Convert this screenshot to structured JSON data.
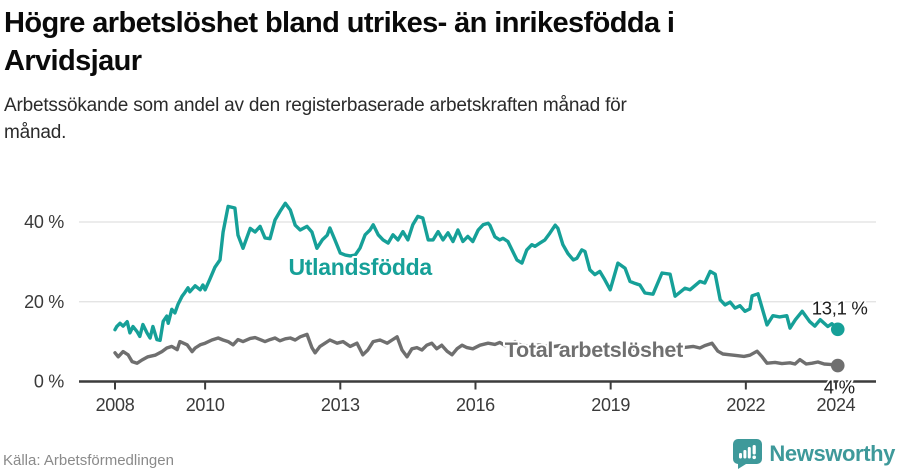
{
  "header": {
    "title": "Högre arbetslöshet bland utrikes- än inrikesfödda i Arvidsjaur",
    "title_lines": [
      "Högre arbetslöshet bland utrikes- än inrikesfödda i",
      "Arvidsjaur"
    ],
    "subtitle": "Arbetssökande som andel av den registerbaserade arbetskraften månad för månad.",
    "subtitle_lines": [
      "Arbetssökande som andel av den registerbaserade arbetskraften månad för",
      "månad."
    ]
  },
  "footer": {
    "source": "Källa: Arbetsförmedlingen",
    "brand": "Newsworthy",
    "logo_icon": "newsworthy-speech-bubble-bar-chart-icon"
  },
  "colors": {
    "teal_series": "#16a098",
    "gray_series": "#6f6f6f",
    "axis": "#3c3c3c",
    "gridline": "#e0e0e0",
    "tick_text": "#3a3a3a",
    "end_label_text": "#1c1c1c",
    "title_text": "#0a0a0a",
    "subtitle_text": "#2b2b2b",
    "source_text": "#8a8a8a",
    "logo": "#3e999a",
    "background": "#ffffff"
  },
  "chart_data": {
    "type": "line",
    "title": "Högre arbetslöshet bland utrikes- än inrikesfödda i Arvidsjaur",
    "subtitle": "Arbetssökande som andel av den registerbaserade arbetskraften månad för månad.",
    "xlabel": "",
    "ylabel": "",
    "unit": "%",
    "xlim": [
      2008,
      2024.2
    ],
    "ylim": [
      0,
      45
    ],
    "grid": "horizontal",
    "legend": "inline-series-labels",
    "x_ticks": [
      {
        "year": 2008,
        "label": "2008"
      },
      {
        "year": 2010,
        "label": "2010"
      },
      {
        "year": 2013,
        "label": "2013"
      },
      {
        "year": 2016,
        "label": "2016"
      },
      {
        "year": 2019,
        "label": "2019"
      },
      {
        "year": 2022,
        "label": "2022"
      },
      {
        "year": 2024,
        "label": "2024"
      }
    ],
    "y_ticks": [
      {
        "value": 0,
        "label": "0 %",
        "gridline": false
      },
      {
        "value": 20,
        "label": "20 %",
        "gridline": true
      },
      {
        "value": 40,
        "label": "40 %",
        "gridline": true
      }
    ],
    "series": [
      {
        "id": "utlandsfodda",
        "name": "Utlandsfödda",
        "color": "#16a098",
        "end_value": 13.1,
        "end_label": "13,1 %",
        "end_label_offset": [
          -26,
          -15
        ],
        "label_at": [
          2011.85,
          26.7
        ],
        "label_font_px": 23,
        "points": [
          [
            2008.0,
            13.0
          ],
          [
            2008.04,
            13.8
          ],
          [
            2008.11,
            14.6
          ],
          [
            2008.18,
            13.9
          ],
          [
            2008.27,
            15.0
          ],
          [
            2008.33,
            12.2
          ],
          [
            2008.4,
            13.8
          ],
          [
            2008.49,
            12.5
          ],
          [
            2008.55,
            11.3
          ],
          [
            2008.62,
            14.3
          ],
          [
            2008.71,
            12.2
          ],
          [
            2008.78,
            10.9
          ],
          [
            2008.84,
            13.8
          ],
          [
            2008.93,
            10.5
          ],
          [
            2009.0,
            10.3
          ],
          [
            2009.07,
            15.1
          ],
          [
            2009.15,
            16.4
          ],
          [
            2009.18,
            14.6
          ],
          [
            2009.26,
            18.1
          ],
          [
            2009.33,
            17.2
          ],
          [
            2009.4,
            19.4
          ],
          [
            2009.49,
            21.4
          ],
          [
            2009.55,
            22.3
          ],
          [
            2009.62,
            23.5
          ],
          [
            2009.66,
            22.5
          ],
          [
            2009.78,
            24.0
          ],
          [
            2009.89,
            23.0
          ],
          [
            2009.95,
            24.2
          ],
          [
            2010.0,
            23.0
          ],
          [
            2010.1,
            25.5
          ],
          [
            2010.22,
            28.7
          ],
          [
            2010.33,
            30.5
          ],
          [
            2010.4,
            37.5
          ],
          [
            2010.51,
            43.9
          ],
          [
            2010.66,
            43.5
          ],
          [
            2010.73,
            36.7
          ],
          [
            2010.84,
            33.4
          ],
          [
            2011.0,
            38.4
          ],
          [
            2011.11,
            37.5
          ],
          [
            2011.22,
            38.9
          ],
          [
            2011.33,
            36.0
          ],
          [
            2011.44,
            35.8
          ],
          [
            2011.55,
            40.5
          ],
          [
            2011.66,
            42.6
          ],
          [
            2011.78,
            44.7
          ],
          [
            2011.89,
            43.0
          ],
          [
            2012.0,
            39.2
          ],
          [
            2012.11,
            38.0
          ],
          [
            2012.26,
            38.9
          ],
          [
            2012.37,
            37.5
          ],
          [
            2012.48,
            33.4
          ],
          [
            2012.6,
            35.5
          ],
          [
            2012.71,
            36.7
          ],
          [
            2012.77,
            38.5
          ],
          [
            2012.88,
            35.5
          ],
          [
            2013.0,
            32.2
          ],
          [
            2013.11,
            31.7
          ],
          [
            2013.22,
            31.5
          ],
          [
            2013.33,
            31.7
          ],
          [
            2013.44,
            33.5
          ],
          [
            2013.55,
            36.8
          ],
          [
            2013.66,
            38.0
          ],
          [
            2013.73,
            39.3
          ],
          [
            2013.84,
            36.8
          ],
          [
            2013.95,
            35.5
          ],
          [
            2014.06,
            34.7
          ],
          [
            2014.17,
            36.8
          ],
          [
            2014.28,
            35.5
          ],
          [
            2014.39,
            37.6
          ],
          [
            2014.5,
            35.5
          ],
          [
            2014.61,
            39.3
          ],
          [
            2014.72,
            41.4
          ],
          [
            2014.83,
            41.0
          ],
          [
            2014.95,
            35.5
          ],
          [
            2015.06,
            35.5
          ],
          [
            2015.17,
            37.6
          ],
          [
            2015.28,
            35.5
          ],
          [
            2015.39,
            37.3
          ],
          [
            2015.5,
            35.1
          ],
          [
            2015.61,
            38.0
          ],
          [
            2015.72,
            35.1
          ],
          [
            2015.83,
            36.4
          ],
          [
            2015.94,
            35.1
          ],
          [
            2016.06,
            38.0
          ],
          [
            2016.17,
            39.3
          ],
          [
            2016.28,
            39.7
          ],
          [
            2016.32,
            39.2
          ],
          [
            2016.43,
            36.3
          ],
          [
            2016.54,
            35.5
          ],
          [
            2016.61,
            35.9
          ],
          [
            2016.72,
            35.1
          ],
          [
            2016.81,
            33.0
          ],
          [
            2016.92,
            30.5
          ],
          [
            2017.03,
            29.7
          ],
          [
            2017.14,
            33.0
          ],
          [
            2017.25,
            34.3
          ],
          [
            2017.32,
            33.9
          ],
          [
            2017.43,
            34.7
          ],
          [
            2017.54,
            35.5
          ],
          [
            2017.65,
            37.2
          ],
          [
            2017.77,
            39.2
          ],
          [
            2017.83,
            38.4
          ],
          [
            2017.94,
            34.3
          ],
          [
            2018.05,
            32.1
          ],
          [
            2018.17,
            30.5
          ],
          [
            2018.25,
            30.9
          ],
          [
            2018.36,
            33.0
          ],
          [
            2018.43,
            32.6
          ],
          [
            2018.54,
            28.0
          ],
          [
            2018.65,
            26.8
          ],
          [
            2018.76,
            27.6
          ],
          [
            2018.87,
            25.5
          ],
          [
            2018.99,
            23.0
          ],
          [
            2019.16,
            29.7
          ],
          [
            2019.32,
            28.4
          ],
          [
            2019.43,
            25.1
          ],
          [
            2019.54,
            24.6
          ],
          [
            2019.65,
            24.2
          ],
          [
            2019.76,
            22.2
          ],
          [
            2019.94,
            21.9
          ],
          [
            2020.14,
            27.2
          ],
          [
            2020.32,
            26.9
          ],
          [
            2020.43,
            21.4
          ],
          [
            2020.65,
            23.4
          ],
          [
            2020.76,
            23.0
          ],
          [
            2020.98,
            25.1
          ],
          [
            2021.09,
            24.7
          ],
          [
            2021.21,
            27.6
          ],
          [
            2021.32,
            26.9
          ],
          [
            2021.43,
            20.5
          ],
          [
            2021.54,
            19.2
          ],
          [
            2021.65,
            19.9
          ],
          [
            2021.76,
            18.4
          ],
          [
            2021.87,
            19.0
          ],
          [
            2021.98,
            17.6
          ],
          [
            2022.09,
            18.2
          ],
          [
            2022.14,
            21.5
          ],
          [
            2022.27,
            22.0
          ],
          [
            2022.47,
            14.2
          ],
          [
            2022.6,
            16.5
          ],
          [
            2022.75,
            16.2
          ],
          [
            2022.91,
            16.5
          ],
          [
            2022.98,
            13.4
          ],
          [
            2023.1,
            15.5
          ],
          [
            2023.25,
            17.6
          ],
          [
            2023.42,
            15.0
          ],
          [
            2023.53,
            13.9
          ],
          [
            2023.65,
            15.5
          ],
          [
            2023.82,
            13.8
          ],
          [
            2023.91,
            14.5
          ],
          [
            2024.04,
            13.1
          ]
        ]
      },
      {
        "id": "total",
        "name": "Total arbetslöshet",
        "color": "#6f6f6f",
        "end_value": 4.0,
        "end_label": "4 %",
        "end_label_offset": [
          -14,
          28
        ],
        "label_at": [
          2016.65,
          6.1
        ],
        "label_font_px": 21.5,
        "points": [
          [
            2008.0,
            7.2
          ],
          [
            2008.07,
            6.2
          ],
          [
            2008.18,
            7.5
          ],
          [
            2008.29,
            6.7
          ],
          [
            2008.38,
            5.0
          ],
          [
            2008.49,
            4.6
          ],
          [
            2008.6,
            5.4
          ],
          [
            2008.73,
            6.2
          ],
          [
            2008.89,
            6.6
          ],
          [
            2009.04,
            7.5
          ],
          [
            2009.15,
            8.4
          ],
          [
            2009.26,
            8.8
          ],
          [
            2009.38,
            8.0
          ],
          [
            2009.44,
            10.0
          ],
          [
            2009.6,
            9.2
          ],
          [
            2009.71,
            7.5
          ],
          [
            2009.78,
            8.4
          ],
          [
            2009.89,
            9.2
          ],
          [
            2010.0,
            9.6
          ],
          [
            2010.15,
            10.4
          ],
          [
            2010.29,
            10.9
          ],
          [
            2010.4,
            10.4
          ],
          [
            2010.51,
            10.0
          ],
          [
            2010.62,
            9.2
          ],
          [
            2010.73,
            10.5
          ],
          [
            2010.84,
            10.0
          ],
          [
            2011.0,
            10.8
          ],
          [
            2011.11,
            11.0
          ],
          [
            2011.22,
            10.5
          ],
          [
            2011.33,
            10.0
          ],
          [
            2011.44,
            10.5
          ],
          [
            2011.55,
            10.9
          ],
          [
            2011.66,
            10.2
          ],
          [
            2011.78,
            10.7
          ],
          [
            2011.89,
            10.9
          ],
          [
            2012.0,
            10.4
          ],
          [
            2012.11,
            11.2
          ],
          [
            2012.26,
            11.8
          ],
          [
            2012.37,
            8.5
          ],
          [
            2012.44,
            7.2
          ],
          [
            2012.55,
            8.8
          ],
          [
            2012.66,
            9.6
          ],
          [
            2012.77,
            10.4
          ],
          [
            2012.93,
            9.6
          ],
          [
            2013.06,
            10.0
          ],
          [
            2013.22,
            8.8
          ],
          [
            2013.37,
            9.6
          ],
          [
            2013.5,
            6.7
          ],
          [
            2013.61,
            7.9
          ],
          [
            2013.73,
            10.0
          ],
          [
            2013.88,
            10.4
          ],
          [
            2014.04,
            9.6
          ],
          [
            2014.15,
            10.4
          ],
          [
            2014.26,
            11.2
          ],
          [
            2014.37,
            7.9
          ],
          [
            2014.48,
            6.2
          ],
          [
            2014.59,
            8.2
          ],
          [
            2014.7,
            8.5
          ],
          [
            2014.81,
            7.9
          ],
          [
            2014.92,
            9.1
          ],
          [
            2015.03,
            9.6
          ],
          [
            2015.14,
            8.2
          ],
          [
            2015.25,
            9.1
          ],
          [
            2015.37,
            7.6
          ],
          [
            2015.48,
            6.7
          ],
          [
            2015.59,
            8.2
          ],
          [
            2015.7,
            9.1
          ],
          [
            2015.81,
            8.5
          ],
          [
            2015.94,
            8.2
          ],
          [
            2016.1,
            9.1
          ],
          [
            2016.28,
            9.6
          ],
          [
            2016.43,
            9.3
          ],
          [
            2016.54,
            9.8
          ],
          [
            2016.66,
            9.0
          ],
          [
            2016.77,
            9.5
          ],
          [
            2016.88,
            10.0
          ],
          [
            2016.99,
            9.2
          ],
          [
            2017.2,
            8.8
          ],
          [
            2017.43,
            9.2
          ],
          [
            2017.65,
            8.6
          ],
          [
            2017.88,
            9.0
          ],
          [
            2018.1,
            8.5
          ],
          [
            2018.32,
            8.8
          ],
          [
            2018.54,
            8.3
          ],
          [
            2018.76,
            8.6
          ],
          [
            2018.99,
            8.2
          ],
          [
            2019.21,
            8.5
          ],
          [
            2019.43,
            8.0
          ],
          [
            2019.65,
            8.3
          ],
          [
            2019.87,
            7.9
          ],
          [
            2020.1,
            8.2
          ],
          [
            2020.32,
            8.6
          ],
          [
            2020.54,
            8.4
          ],
          [
            2020.83,
            8.8
          ],
          [
            2020.98,
            8.4
          ],
          [
            2021.09,
            9.0
          ],
          [
            2021.25,
            9.6
          ],
          [
            2021.38,
            7.6
          ],
          [
            2021.49,
            6.9
          ],
          [
            2021.65,
            6.7
          ],
          [
            2021.8,
            6.5
          ],
          [
            2021.96,
            6.3
          ],
          [
            2022.09,
            6.6
          ],
          [
            2022.25,
            7.6
          ],
          [
            2022.36,
            6.2
          ],
          [
            2022.47,
            4.6
          ],
          [
            2022.65,
            4.8
          ],
          [
            2022.8,
            4.5
          ],
          [
            2022.98,
            4.7
          ],
          [
            2023.09,
            4.4
          ],
          [
            2023.2,
            5.5
          ],
          [
            2023.34,
            4.4
          ],
          [
            2023.47,
            4.6
          ],
          [
            2023.6,
            4.9
          ],
          [
            2023.74,
            4.4
          ],
          [
            2023.87,
            4.3
          ],
          [
            2024.04,
            4.0
          ]
        ]
      }
    ]
  }
}
